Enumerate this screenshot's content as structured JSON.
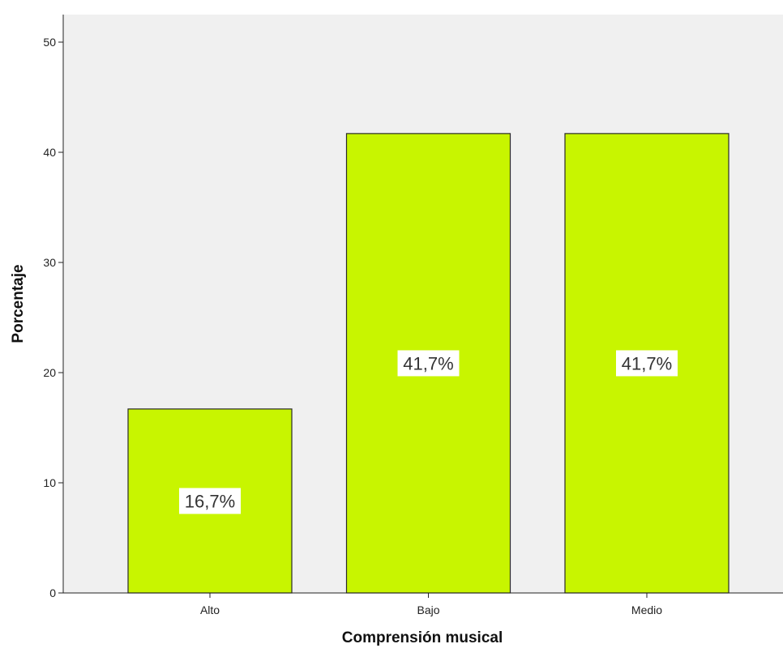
{
  "chart_data": {
    "type": "bar",
    "title": "",
    "xlabel": "Comprensión musical",
    "ylabel": "Porcentaje",
    "categories": [
      "Alto",
      "Bajo",
      "Medio"
    ],
    "values": [
      16.7,
      41.7,
      41.7
    ],
    "data_labels": [
      "16,7%",
      "41,7%",
      "41,7%"
    ],
    "ylim": [
      0,
      50
    ],
    "yticks": [
      0,
      10,
      20,
      30,
      40,
      50
    ],
    "ytick_labels": [
      "0",
      "10",
      "20",
      "30",
      "40",
      "50"
    ],
    "grid": false,
    "legend": "none",
    "colors": {
      "bar_fill": "#c8f500",
      "bar_stroke": "#2a2a2a",
      "plot_background": "#f0f0f0",
      "label_background": "#ffffff"
    }
  }
}
